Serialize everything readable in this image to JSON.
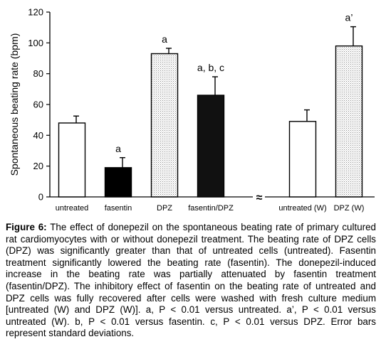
{
  "chart_data": {
    "type": "bar",
    "ylabel": "Spontaneous beating rate (bpm)",
    "xlabel": "",
    "ylim": [
      0,
      120
    ],
    "yticks": [
      0,
      20,
      40,
      60,
      80,
      100,
      120
    ],
    "grid": false,
    "axis_break_symbol": "≈",
    "categories": [
      "untreated",
      "fasentin",
      "DPZ",
      "fasentin/DPZ",
      "untreated (W)",
      "DPZ (W)"
    ],
    "values": [
      48,
      19,
      93,
      66,
      49,
      98
    ],
    "errors": [
      4.5,
      6.5,
      3.5,
      12,
      7.5,
      12.5
    ],
    "annotations": [
      "",
      "a",
      "a",
      "a, b, c",
      "",
      "a’"
    ],
    "fills": [
      "#ffffff",
      "#000000",
      "dotted",
      "#111111",
      "#ffffff",
      "dotted"
    ]
  },
  "caption": {
    "label": "Figure 6:",
    "text": " The effect of donepezil on the spontaneous beating rate of primary cultured rat cardiomyocytes with or without donepezil treatment. The beating rate of DPZ cells (DPZ) was significantly greater than that of untreated cells (untreated). Fasentin treatment significantly lowered the beating rate (fasentin). The donepezil-induced increase in the beating rate was partially attenuated by fasentin treatment (fasentin/DPZ). The inhibitory effect of fasentin on the beating rate of untreated and DPZ cells was fully recovered after cells were washed with fresh culture medium [untreated (W) and DPZ (W)]. a, P < 0.01 versus untreated. a’, P < 0.01 versus untreated (W). b, P < 0.01 versus fasentin. c, P < 0.01 versus DPZ. Error bars represent standard deviations."
  }
}
